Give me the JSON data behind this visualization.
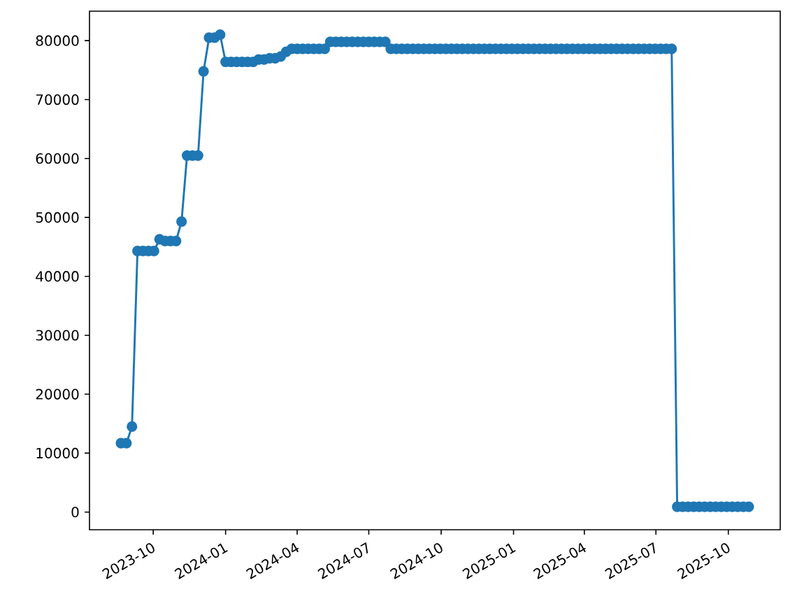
{
  "chart_data": {
    "type": "line",
    "color": "#1f77b4",
    "marker": "circle",
    "line_style": "solid",
    "x": [
      "2023-08-21",
      "2023-08-28",
      "2023-09-04",
      "2023-09-11",
      "2023-09-18",
      "2023-09-25",
      "2023-10-02",
      "2023-10-09",
      "2023-10-16",
      "2023-10-23",
      "2023-10-30",
      "2023-11-06",
      "2023-11-13",
      "2023-11-20",
      "2023-11-27",
      "2023-12-04",
      "2023-12-11",
      "2023-12-18",
      "2023-12-25",
      "2024-01-01",
      "2024-01-08",
      "2024-01-15",
      "2024-01-22",
      "2024-01-29",
      "2024-02-05",
      "2024-02-12",
      "2024-02-19",
      "2024-02-26",
      "2024-03-04",
      "2024-03-11",
      "2024-03-18",
      "2024-03-25",
      "2024-04-01",
      "2024-04-08",
      "2024-04-15",
      "2024-04-22",
      "2024-04-29",
      "2024-05-06",
      "2024-05-13",
      "2024-05-20",
      "2024-05-27",
      "2024-06-03",
      "2024-06-10",
      "2024-06-17",
      "2024-06-24",
      "2024-07-01",
      "2024-07-08",
      "2024-07-15",
      "2024-07-22",
      "2024-07-29",
      "2024-08-05",
      "2024-08-12",
      "2024-08-19",
      "2024-08-26",
      "2024-09-02",
      "2024-09-09",
      "2024-09-16",
      "2024-09-23",
      "2024-09-30",
      "2024-10-07",
      "2024-10-14",
      "2024-10-21",
      "2024-10-28",
      "2024-11-04",
      "2024-11-11",
      "2024-11-18",
      "2024-11-25",
      "2024-12-02",
      "2024-12-09",
      "2024-12-16",
      "2024-12-23",
      "2024-12-30",
      "2025-01-06",
      "2025-01-13",
      "2025-01-20",
      "2025-01-27",
      "2025-02-03",
      "2025-02-10",
      "2025-02-17",
      "2025-02-24",
      "2025-03-03",
      "2025-03-10",
      "2025-03-17",
      "2025-03-24",
      "2025-03-31",
      "2025-04-07",
      "2025-04-14",
      "2025-04-21",
      "2025-04-28",
      "2025-05-05",
      "2025-05-12",
      "2025-05-19",
      "2025-05-26",
      "2025-06-02",
      "2025-06-09",
      "2025-06-16",
      "2025-06-23",
      "2025-06-30",
      "2025-07-07",
      "2025-07-14",
      "2025-07-21",
      "2025-07-28",
      "2025-08-04",
      "2025-08-11",
      "2025-08-18",
      "2025-08-25",
      "2025-09-01",
      "2025-09-08",
      "2025-09-15",
      "2025-09-22",
      "2025-09-29",
      "2025-10-06",
      "2025-10-13",
      "2025-10-20",
      "2025-10-27"
    ],
    "values": [
      11700,
      11700,
      14500,
      44300,
      44300,
      44300,
      44300,
      46300,
      46000,
      46000,
      46000,
      49300,
      60500,
      60500,
      60500,
      74800,
      80500,
      80500,
      81000,
      76400,
      76400,
      76400,
      76400,
      76400,
      76400,
      76800,
      76800,
      77000,
      77000,
      77300,
      78100,
      78600,
      78600,
      78600,
      78600,
      78600,
      78600,
      78600,
      79800,
      79800,
      79800,
      79800,
      79800,
      79800,
      79800,
      79800,
      79800,
      79800,
      79800,
      78600,
      78600,
      78600,
      78600,
      78600,
      78600,
      78600,
      78600,
      78600,
      78600,
      78600,
      78600,
      78600,
      78600,
      78600,
      78600,
      78600,
      78600,
      78600,
      78600,
      78600,
      78600,
      78600,
      78600,
      78600,
      78600,
      78600,
      78600,
      78600,
      78600,
      78600,
      78600,
      78600,
      78600,
      78600,
      78600,
      78600,
      78600,
      78600,
      78600,
      78600,
      78600,
      78600,
      78600,
      78600,
      78600,
      78600,
      78600,
      78600,
      78600,
      78600,
      78600,
      900,
      900,
      900,
      900,
      900,
      900,
      900,
      900,
      900,
      900,
      900,
      900,
      900,
      900
    ],
    "xlim": [
      "2023-07-12",
      "2025-12-06"
    ],
    "ylim": [
      -3000,
      85000
    ],
    "xticks": [
      "2023-10",
      "2024-01",
      "2024-04",
      "2024-07",
      "2024-10",
      "2025-01",
      "2025-04",
      "2025-07",
      "2025-10"
    ],
    "yticks": [
      0,
      10000,
      20000,
      30000,
      40000,
      50000,
      60000,
      70000,
      80000
    ]
  }
}
